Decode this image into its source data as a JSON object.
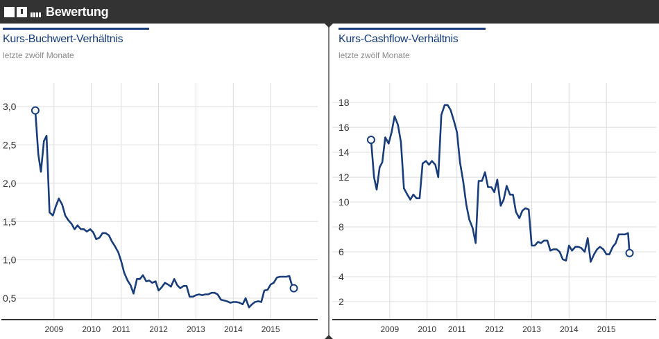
{
  "header": {
    "title": "Bewertung"
  },
  "colors": {
    "line": "#183d7a",
    "grid": "#dcdcdc",
    "bar": "#333333"
  },
  "panels": [
    {
      "title": "Kurs-Buchwert-Verhältnis",
      "subtitle": "letzte zwölf Monate",
      "chart_data": {
        "type": "line",
        "title": "Kurs-Buchwert-Verhältnis",
        "subtitle": "letzte zwölf Monate",
        "xlabel": "",
        "ylabel": "",
        "y_ticks": [
          "3,0",
          "2,5",
          "2,0",
          "1,5",
          "1,0",
          "0,5"
        ],
        "y_tick_values": [
          3.0,
          2.5,
          2.0,
          1.5,
          1.0,
          0.5
        ],
        "x_ticks": [
          "2009",
          "2010",
          "2011",
          "2012",
          "2013",
          "2014",
          "2015"
        ],
        "x_tick_values": [
          2009.2,
          2010.2,
          2011.0,
          2012.0,
          2013.0,
          2014.0,
          2015.0
        ],
        "xlim": [
          2008.2,
          2016.0
        ],
        "ylim": [
          0.22,
          3.2
        ],
        "grid": true,
        "start_marker": true,
        "end_marker": true,
        "series": [
          {
            "x": [
              2008.7,
              2008.78,
              2008.85,
              2008.93,
              2009.0,
              2009.08,
              2009.17,
              2009.25,
              2009.33,
              2009.42,
              2009.5,
              2009.58,
              2009.67,
              2009.75,
              2009.83,
              2009.92,
              2010.0,
              2010.08,
              2010.17,
              2010.25,
              2010.33,
              2010.42,
              2010.5,
              2010.58,
              2010.67,
              2010.75,
              2010.83,
              2010.92,
              2011.0,
              2011.08,
              2011.17,
              2011.25,
              2011.33,
              2011.42,
              2011.5,
              2011.58,
              2011.67,
              2011.75,
              2011.83,
              2011.92,
              2012.0,
              2012.08,
              2012.17,
              2012.25,
              2012.33,
              2012.42,
              2012.5,
              2012.58,
              2012.67,
              2012.75,
              2012.83,
              2012.92,
              2013.0,
              2013.08,
              2013.17,
              2013.25,
              2013.33,
              2013.42,
              2013.5,
              2013.58,
              2013.67,
              2013.75,
              2013.83,
              2013.92,
              2014.0,
              2014.08,
              2014.17,
              2014.25,
              2014.33,
              2014.42,
              2014.5,
              2014.58,
              2014.67,
              2014.75,
              2014.83,
              2014.92,
              2015.0,
              2015.08,
              2015.17,
              2015.25,
              2015.33,
              2015.42,
              2015.5,
              2015.58,
              2015.62
            ],
            "y": [
              2.95,
              2.38,
              2.15,
              2.55,
              2.62,
              1.62,
              1.58,
              1.7,
              1.8,
              1.72,
              1.58,
              1.52,
              1.47,
              1.4,
              1.45,
              1.4,
              1.4,
              1.37,
              1.4,
              1.36,
              1.27,
              1.29,
              1.35,
              1.35,
              1.32,
              1.24,
              1.18,
              1.1,
              0.98,
              0.83,
              0.73,
              0.67,
              0.56,
              0.75,
              0.75,
              0.8,
              0.72,
              0.73,
              0.7,
              0.72,
              0.6,
              0.64,
              0.7,
              0.68,
              0.65,
              0.75,
              0.67,
              0.63,
              0.66,
              0.66,
              0.52,
              0.52,
              0.54,
              0.55,
              0.54,
              0.55,
              0.55,
              0.57,
              0.57,
              0.55,
              0.48,
              0.47,
              0.46,
              0.44,
              0.45,
              0.45,
              0.44,
              0.42,
              0.5,
              0.38,
              0.42,
              0.45,
              0.46,
              0.45,
              0.6,
              0.61,
              0.68,
              0.7,
              0.77,
              0.78,
              0.78,
              0.78,
              0.79,
              0.65,
              0.63
            ]
          }
        ]
      }
    },
    {
      "title": "Kurs-Cashflow-Verhältnis",
      "subtitle": "letzte zwölf Monate",
      "chart_data": {
        "type": "line",
        "title": "Kurs-Cashflow-Verhältnis",
        "subtitle": "letzte zwölf Monate",
        "xlabel": "",
        "ylabel": "",
        "y_ticks": [
          "18",
          "16",
          "14",
          "12",
          "10",
          "8",
          "6",
          "4",
          "2"
        ],
        "y_tick_values": [
          18,
          16,
          14,
          12,
          10,
          8,
          6,
          4,
          2
        ],
        "x_ticks": [
          "2009",
          "2010",
          "2011",
          "2012",
          "2013",
          "2014",
          "2015"
        ],
        "x_tick_values": [
          2009.2,
          2010.2,
          2011.0,
          2012.0,
          2013.0,
          2014.0,
          2015.0
        ],
        "xlim": [
          2008.2,
          2016.0
        ],
        "ylim": [
          0.55,
          18.9
        ],
        "grid": true,
        "start_marker": true,
        "end_marker": true,
        "series": [
          {
            "x": [
              2008.7,
              2008.78,
              2008.85,
              2008.93,
              2009.0,
              2009.08,
              2009.17,
              2009.25,
              2009.33,
              2009.42,
              2009.5,
              2009.58,
              2009.67,
              2009.75,
              2009.83,
              2009.92,
              2010.0,
              2010.08,
              2010.17,
              2010.25,
              2010.33,
              2010.42,
              2010.5,
              2010.58,
              2010.67,
              2010.75,
              2010.83,
              2010.92,
              2011.0,
              2011.08,
              2011.17,
              2011.25,
              2011.33,
              2011.42,
              2011.5,
              2011.58,
              2011.67,
              2011.75,
              2011.83,
              2011.92,
              2012.0,
              2012.08,
              2012.17,
              2012.25,
              2012.33,
              2012.42,
              2012.5,
              2012.58,
              2012.67,
              2012.75,
              2012.83,
              2012.92,
              2013.0,
              2013.08,
              2013.17,
              2013.25,
              2013.33,
              2013.42,
              2013.5,
              2013.58,
              2013.67,
              2013.75,
              2013.83,
              2013.92,
              2014.0,
              2014.08,
              2014.17,
              2014.25,
              2014.33,
              2014.42,
              2014.5,
              2014.58,
              2014.67,
              2014.75,
              2014.83,
              2014.92,
              2015.0,
              2015.08,
              2015.17,
              2015.25,
              2015.33,
              2015.42,
              2015.5,
              2015.58,
              2015.62
            ],
            "y": [
              15.0,
              12.0,
              11.0,
              12.8,
              13.2,
              15.2,
              14.7,
              15.6,
              16.9,
              16.2,
              14.8,
              11.1,
              10.6,
              10.2,
              10.6,
              10.3,
              10.3,
              13.1,
              13.3,
              13.0,
              13.3,
              13.0,
              12.0,
              17.0,
              17.8,
              17.8,
              17.4,
              16.5,
              15.6,
              13.2,
              11.6,
              9.8,
              8.6,
              7.9,
              6.7,
              11.7,
              11.7,
              12.4,
              11.2,
              11.2,
              10.8,
              11.8,
              9.7,
              10.2,
              11.3,
              10.6,
              10.6,
              9.2,
              8.7,
              9.3,
              9.5,
              9.4,
              6.5,
              6.5,
              6.8,
              6.7,
              6.9,
              6.9,
              6.1,
              6.2,
              6.2,
              6.0,
              5.4,
              5.3,
              6.5,
              6.1,
              6.4,
              6.4,
              6.3,
              6.0,
              7.1,
              5.2,
              5.8,
              6.2,
              6.4,
              6.2,
              5.8,
              5.8,
              6.4,
              6.7,
              7.4,
              7.4,
              7.4,
              7.5,
              5.9
            ]
          }
        ]
      }
    }
  ]
}
